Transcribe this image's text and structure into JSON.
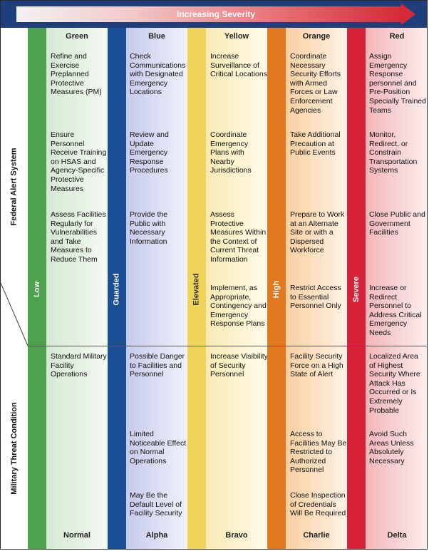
{
  "banner": {
    "title": "Increasing Severity"
  },
  "side_labels": {
    "federal": "Federal Alert System",
    "military": "Military Threat Condition"
  },
  "colors": {
    "low": "#4ea24e",
    "guarded": "#1b4f95",
    "elevated": "#f0d45a",
    "high": "#e0791f",
    "severe": "#d8223a",
    "green_tint": "#e1eedf",
    "blue_tint": "#cfd3ee",
    "yellow_tint": "#fbf1c7",
    "orange_tint": "#fbdcb7",
    "red_tint": "#f6c3c5",
    "banner": "#1f3f7c"
  },
  "columns": [
    {
      "level": "Low",
      "color": "Green",
      "condition": "Normal",
      "federal": [
        "Refine and Exercise Preplanned Protective Measures (PM)",
        "Ensure Personnel Receive Training on HSAS and Agency-Specific Protective Measures",
        "Assess Facilities Regularly for Vulnerabilities and Take Measures to Reduce Them"
      ],
      "military": [
        "Standard Military Facility Operations"
      ]
    },
    {
      "level": "Guarded",
      "color": "Blue",
      "condition": "Alpha",
      "federal": [
        "Check Communications with Designated Emergency Locations",
        "Review and Update Emergency Response Procedures",
        "Provide the Public with Necessary Information"
      ],
      "military": [
        "Possible Danger to Facilities and Personnel",
        "Limited Noticeable Effect on Normal Operations",
        "May Be the Default Level of Facility Security"
      ]
    },
    {
      "level": "Elevated",
      "color": "Yellow",
      "condition": "Bravo",
      "federal": [
        "Increase Surveillance of Critical Locations",
        "Coordinate Emergency Plans with Nearby Jurisdictions",
        "Assess Protective Measures Within the Context of Current Threat Information",
        "Implement, as Appropriate, Contingency and Emergency Response Plans"
      ],
      "military": [
        "Increase Visibility of Security Personnel"
      ]
    },
    {
      "level": "High",
      "color": "Orange",
      "condition": "Charlie",
      "federal": [
        "Coordinate Necessary Security Efforts with Armed Forces or Law Enforcement Agencies",
        "Take Additional Precaution at Public Events",
        "Prepare to Work at an Alternate Site or with a Dispersed Workforce",
        "Restrict Access to Essential Personnel Only"
      ],
      "military": [
        "Facility Security Force on a High State of Alert",
        "Access to Facilities May Be Restricted to Authorized Personnel",
        "Close Inspection of Credentials Will Be Required"
      ]
    },
    {
      "level": "Severe",
      "color": "Red",
      "condition": "Delta",
      "federal": [
        "Assign Emergency Response personnel and Pre-Position Specially Trained Teams",
        "Monitor, Redirect, or Constrain Transportation Systems",
        "Close Public and Government Facilities",
        "Increase or Redirect Personnel to Address Critical Emergency Needs"
      ],
      "military": [
        "Localized Area of Highest Security Where Attack Has Occurred or Is Extremely Probable",
        "Avoid Such Areas Unless Absolutely Necessary"
      ]
    }
  ]
}
